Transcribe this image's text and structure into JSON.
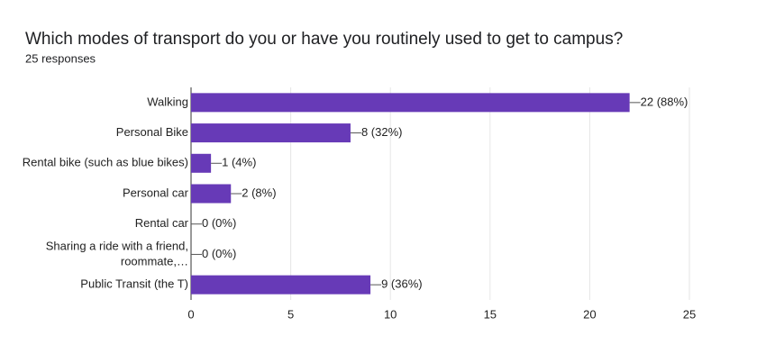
{
  "chart_data": {
    "type": "bar",
    "orientation": "horizontal",
    "title": "Which modes of transport do you or have you routinely used to get to campus?",
    "subtitle": "25 responses",
    "categories": [
      "Walking",
      "Personal Bike",
      "Rental bike (such as blue bikes)",
      "Personal car",
      "Rental car",
      "Sharing a ride with a friend, roommate,…",
      "Public Transit (the T)"
    ],
    "values": [
      22,
      8,
      1,
      2,
      0,
      0,
      9
    ],
    "value_labels": [
      "22 (88%)",
      "8 (32%)",
      "1 (4%)",
      "2 (8%)",
      "0 (0%)",
      "0 (0%)",
      "9 (36%)"
    ],
    "color": "#673ab7",
    "xlim": [
      0,
      25
    ],
    "xticks": [
      0,
      5,
      10,
      15,
      20,
      25
    ],
    "grid": true
  }
}
